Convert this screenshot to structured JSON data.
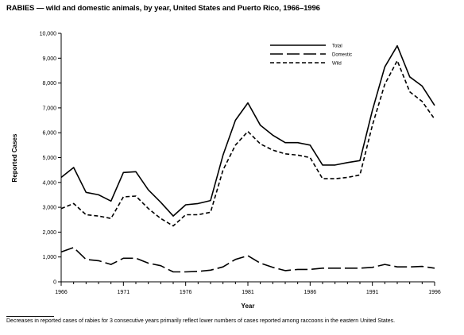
{
  "chart_data": {
    "type": "line",
    "title": "RABIES — wild and domestic animals, by year, United States and Puerto Rico, 1966–1996",
    "xlabel": "Year",
    "ylabel": "Reported Cases",
    "xlim": [
      1966,
      1996
    ],
    "ylim": [
      0,
      10000
    ],
    "xticks": [
      1966,
      1971,
      1976,
      1981,
      1986,
      1991,
      1996
    ],
    "yticks": [
      0,
      1000,
      2000,
      3000,
      4000,
      5000,
      6000,
      7000,
      8000,
      9000,
      10000
    ],
    "ytick_labels": [
      "0",
      "1,000",
      "2,000",
      "3,000",
      "4,000",
      "5,000",
      "6,000",
      "7,000",
      "8,000",
      "9,000",
      "10,000"
    ],
    "grid": false,
    "legend_position": "top-right",
    "x": [
      1966,
      1967,
      1968,
      1969,
      1970,
      1971,
      1972,
      1973,
      1974,
      1975,
      1976,
      1977,
      1978,
      1979,
      1980,
      1981,
      1982,
      1983,
      1984,
      1985,
      1986,
      1987,
      1988,
      1989,
      1990,
      1991,
      1992,
      1993,
      1994,
      1995,
      1996
    ],
    "series": [
      {
        "name": "Total",
        "style": "solid",
        "values": [
          4200,
          4600,
          3600,
          3500,
          3250,
          4400,
          4430,
          3700,
          3200,
          2650,
          3100,
          3150,
          3270,
          5100,
          6500,
          7200,
          6300,
          5900,
          5600,
          5600,
          5500,
          4700,
          4700,
          4800,
          4880,
          6900,
          8650,
          9500,
          8250,
          7880,
          7100
        ]
      },
      {
        "name": "Domestic",
        "style": "long-dash",
        "values": [
          1200,
          1380,
          900,
          850,
          700,
          950,
          950,
          750,
          650,
          400,
          400,
          420,
          470,
          600,
          900,
          1050,
          750,
          580,
          450,
          500,
          500,
          550,
          550,
          550,
          550,
          580,
          700,
          600,
          600,
          620,
          550
        ]
      },
      {
        "name": "Wild",
        "style": "short-dash",
        "values": [
          2950,
          3150,
          2700,
          2650,
          2550,
          3420,
          3450,
          2950,
          2550,
          2250,
          2700,
          2700,
          2800,
          4500,
          5500,
          6050,
          5550,
          5300,
          5150,
          5100,
          5000,
          4150,
          4150,
          4200,
          4300,
          6300,
          7950,
          8900,
          7650,
          7260,
          6550
        ]
      }
    ]
  },
  "footnote": "Decreases in reported cases of rabies for 3 consecutive years primarily reflect lower numbers of cases reported among raccoons in the eastern United States."
}
